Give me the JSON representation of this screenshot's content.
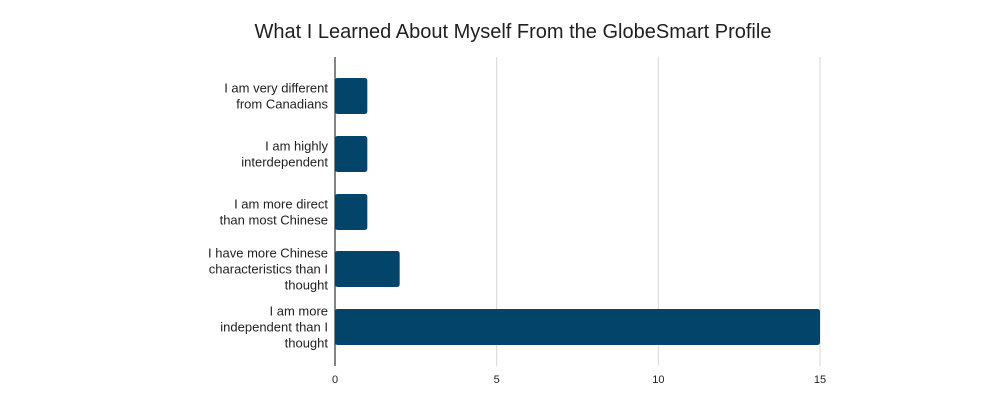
{
  "chart_data": {
    "type": "bar",
    "orientation": "horizontal",
    "title": "What I Learned About Myself From the GlobeSmart Profile",
    "categories": [
      [
        "I am very different",
        "from Canadians"
      ],
      [
        "I am highly",
        "interdependent"
      ],
      [
        "I am more direct",
        "than most Chinese"
      ],
      [
        "I have more Chinese",
        "characteristics than I",
        "thought"
      ],
      [
        "I am more",
        "independent than I",
        "thought"
      ]
    ],
    "values": [
      1,
      1,
      1,
      2,
      15
    ],
    "xlim": [
      0,
      15
    ],
    "xticks": [
      0,
      5,
      10,
      15
    ],
    "grid": true,
    "legend": "none",
    "bar_color": "#03446a"
  }
}
